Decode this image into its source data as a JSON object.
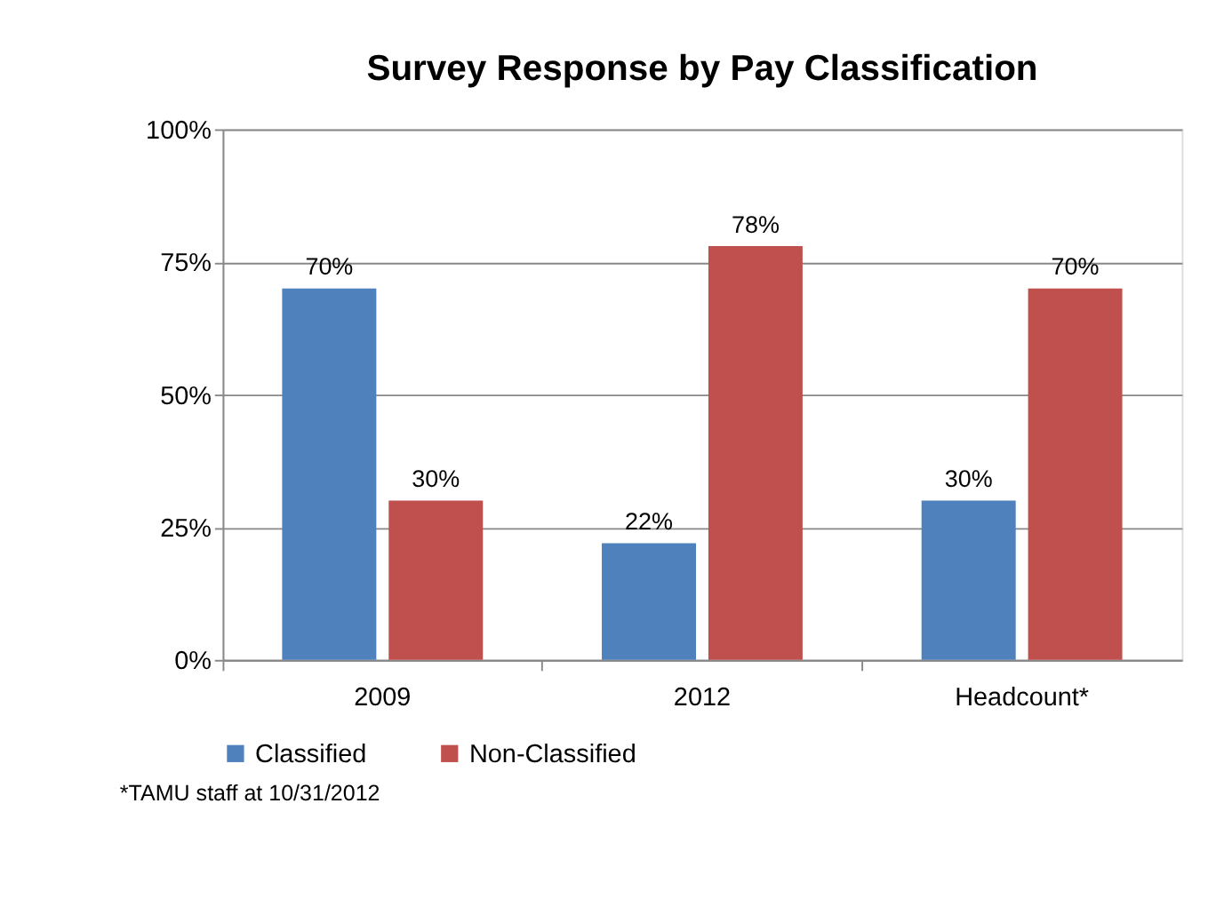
{
  "chart_data": {
    "type": "bar",
    "title": "Survey Response by Pay Classification",
    "categories": [
      "2009",
      "2012",
      "Headcount*"
    ],
    "series": [
      {
        "name": "Classified",
        "color": "#4f81bd",
        "values": [
          70,
          22,
          30
        ],
        "value_labels": [
          "70%",
          "22%",
          "30%"
        ]
      },
      {
        "name": "Non-Classified",
        "color": "#c0504d",
        "values": [
          30,
          78,
          70
        ],
        "value_labels": [
          "30%",
          "78%",
          "70%"
        ]
      }
    ],
    "ylim": [
      0,
      100
    ],
    "yticks": [
      {
        "value": 0,
        "label": "0%"
      },
      {
        "value": 25,
        "label": "25%"
      },
      {
        "value": 50,
        "label": "50%"
      },
      {
        "value": 75,
        "label": "75%"
      },
      {
        "value": 100,
        "label": "100%"
      }
    ],
    "grid": "y",
    "legend": "bottom",
    "annotations": [
      "*TAMU staff at 10/31/2012"
    ]
  }
}
